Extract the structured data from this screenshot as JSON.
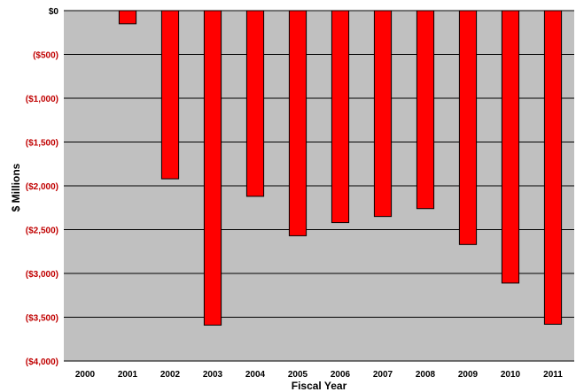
{
  "chart_data": {
    "type": "bar",
    "xlabel": "Fiscal Year",
    "ylabel": "$ Millions",
    "categories": [
      "2000",
      "2001",
      "2002",
      "2003",
      "2004",
      "2005",
      "2006",
      "2007",
      "2008",
      "2009",
      "2010",
      "2011"
    ],
    "values": [
      0,
      -150,
      -1920,
      -3590,
      -2120,
      -2570,
      -2420,
      -2350,
      -2260,
      -2670,
      -3110,
      -3580
    ],
    "ylim": [
      -4000,
      0
    ],
    "yticks": [
      0,
      -500,
      -1000,
      -1500,
      -2000,
      -2500,
      -3000,
      -3500,
      -4000
    ],
    "ytick_labels": [
      "$0",
      "($500)",
      "($1,000)",
      "($1,500)",
      "($2,000)",
      "($2,500)",
      "($3,000)",
      "($3,500)",
      "($4,000)"
    ],
    "grid": true,
    "legend": "none",
    "colors": {
      "bar_fill": "#ff0000",
      "bar_stroke": "#000000",
      "plot_background": "#c0c0c0",
      "gridline": "#000000",
      "zero_tick_label": "#000000",
      "negative_tick_label": "#c00000"
    }
  }
}
